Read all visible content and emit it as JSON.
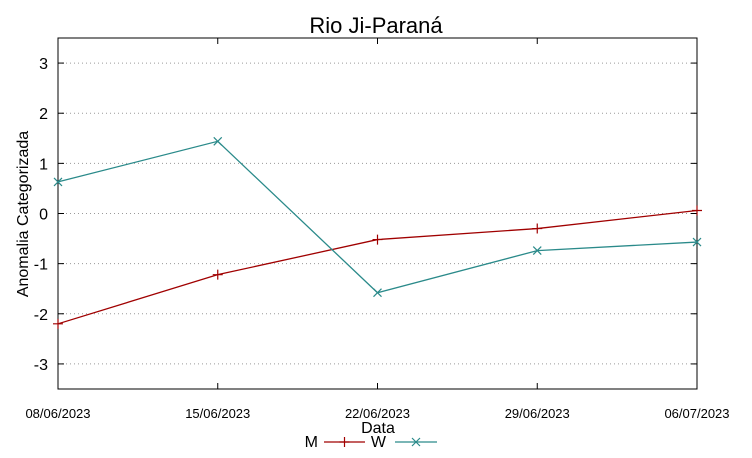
{
  "chart_data": {
    "type": "line",
    "title": "Rio Ji-Paraná",
    "xlabel": "Data",
    "ylabel": "Anomalia Categorizada",
    "categories": [
      "08/06/2023",
      "15/06/2023",
      "22/06/2023",
      "29/06/2023",
      "06/07/2023"
    ],
    "yticks": [
      3,
      2,
      1,
      0,
      -1,
      -2,
      -3
    ],
    "ylim": [
      -3.5,
      3.5
    ],
    "grid": "horizontal-dotted",
    "legend_position": "bottom-center",
    "series": [
      {
        "name": "M",
        "color": "#a00000",
        "marker": "plus",
        "values": [
          -2.2,
          -1.22,
          -0.52,
          -0.3,
          0.06
        ]
      },
      {
        "name": "W",
        "color": "#2a8a8a",
        "marker": "cross",
        "values": [
          0.63,
          1.44,
          -1.58,
          -0.74,
          -0.57
        ]
      }
    ]
  }
}
